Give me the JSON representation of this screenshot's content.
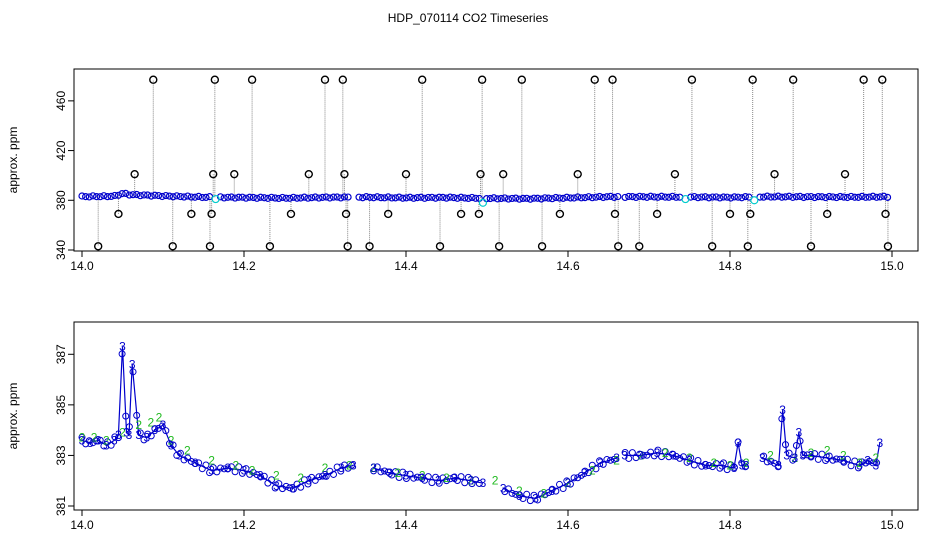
{
  "title": "HDP_070114  CO2 Timeseries",
  "colors": {
    "black": "#000000",
    "blue": "#0000cc",
    "cyan": "#00cccc",
    "green": "#22bb22",
    "gray": "#888888"
  },
  "chart_data": [
    {
      "type": "scatter",
      "ylabel": "approx. ppm",
      "xlim": [
        14.0,
        15.0
      ],
      "ylim": [
        340,
        480
      ],
      "xticks": [
        "14.0",
        "14.2",
        "14.4",
        "14.6",
        "14.8",
        "15.0"
      ],
      "xtick_values": [
        14.0,
        14.2,
        14.4,
        14.6,
        14.8,
        15.0
      ],
      "yticks": [
        "340",
        "380",
        "420",
        "460"
      ],
      "ytick_values": [
        340,
        380,
        420,
        460
      ],
      "baseline": [
        [
          14.0,
          383
        ],
        [
          14.04,
          383.3
        ],
        [
          14.05,
          385.5
        ],
        [
          14.06,
          384.5
        ],
        [
          14.08,
          384
        ],
        [
          14.1,
          383.5
        ],
        [
          14.15,
          382.5
        ],
        [
          14.2,
          382.2
        ],
        [
          14.25,
          381.8
        ],
        [
          14.3,
          382.3
        ],
        [
          14.35,
          382.5
        ],
        [
          14.4,
          382
        ],
        [
          14.45,
          382.2
        ],
        [
          14.5,
          381.6
        ],
        [
          14.55,
          381.3
        ],
        [
          14.6,
          382
        ],
        [
          14.65,
          382.8
        ],
        [
          14.7,
          382.8
        ],
        [
          14.75,
          382.6
        ],
        [
          14.8,
          382.3
        ],
        [
          14.85,
          382.9
        ],
        [
          14.9,
          382.7
        ],
        [
          14.95,
          382.6
        ],
        [
          14.99,
          382.8
        ]
      ],
      "gaps": [
        14.165,
        14.335,
        14.495,
        14.665,
        14.745,
        14.83
      ],
      "cyan_points": [
        [
          14.165,
          381
        ],
        [
          14.495,
          378
        ],
        [
          14.745,
          381
        ],
        [
          14.83,
          380
        ]
      ],
      "spikes": [
        {
          "x": 14.02,
          "y": 343
        },
        {
          "x": 14.045,
          "y": 369
        },
        {
          "x": 14.065,
          "y": 401
        },
        {
          "x": 14.088,
          "y": 477
        },
        {
          "x": 14.112,
          "y": 343
        },
        {
          "x": 14.135,
          "y": 369
        },
        {
          "x": 14.158,
          "y": 343
        },
        {
          "x": 14.16,
          "y": 369
        },
        {
          "x": 14.162,
          "y": 401
        },
        {
          "x": 14.164,
          "y": 477
        },
        {
          "x": 14.188,
          "y": 401
        },
        {
          "x": 14.21,
          "y": 477
        },
        {
          "x": 14.232,
          "y": 343
        },
        {
          "x": 14.258,
          "y": 369
        },
        {
          "x": 14.28,
          "y": 401
        },
        {
          "x": 14.3,
          "y": 477
        },
        {
          "x": 14.322,
          "y": 477
        },
        {
          "x": 14.324,
          "y": 401
        },
        {
          "x": 14.326,
          "y": 369
        },
        {
          "x": 14.328,
          "y": 343
        },
        {
          "x": 14.355,
          "y": 343
        },
        {
          "x": 14.378,
          "y": 369
        },
        {
          "x": 14.4,
          "y": 401
        },
        {
          "x": 14.42,
          "y": 477
        },
        {
          "x": 14.442,
          "y": 343
        },
        {
          "x": 14.468,
          "y": 369
        },
        {
          "x": 14.49,
          "y": 369
        },
        {
          "x": 14.492,
          "y": 401
        },
        {
          "x": 14.494,
          "y": 477
        },
        {
          "x": 14.515,
          "y": 343
        },
        {
          "x": 14.52,
          "y": 401
        },
        {
          "x": 14.543,
          "y": 477
        },
        {
          "x": 14.568,
          "y": 343
        },
        {
          "x": 14.59,
          "y": 369
        },
        {
          "x": 14.612,
          "y": 401
        },
        {
          "x": 14.633,
          "y": 477
        },
        {
          "x": 14.655,
          "y": 477
        },
        {
          "x": 14.658,
          "y": 369
        },
        {
          "x": 14.662,
          "y": 343
        },
        {
          "x": 14.688,
          "y": 343
        },
        {
          "x": 14.71,
          "y": 369
        },
        {
          "x": 14.732,
          "y": 401
        },
        {
          "x": 14.753,
          "y": 477
        },
        {
          "x": 14.778,
          "y": 343
        },
        {
          "x": 14.8,
          "y": 369
        },
        {
          "x": 14.822,
          "y": 343
        },
        {
          "x": 14.825,
          "y": 369
        },
        {
          "x": 14.828,
          "y": 477
        },
        {
          "x": 14.855,
          "y": 401
        },
        {
          "x": 14.878,
          "y": 477
        },
        {
          "x": 14.9,
          "y": 343
        },
        {
          "x": 14.92,
          "y": 369
        },
        {
          "x": 14.942,
          "y": 401
        },
        {
          "x": 14.965,
          "y": 477
        },
        {
          "x": 14.988,
          "y": 477
        },
        {
          "x": 14.992,
          "y": 369
        },
        {
          "x": 14.995,
          "y": 343
        }
      ]
    },
    {
      "type": "line",
      "ylabel": "approx. ppm",
      "xlim": [
        14.0,
        15.0
      ],
      "ylim": [
        381,
        388
      ],
      "xticks": [
        "14.0",
        "14.2",
        "14.4",
        "14.6",
        "14.8",
        "15.0"
      ],
      "xtick_values": [
        14.0,
        14.2,
        14.4,
        14.6,
        14.8,
        15.0
      ],
      "yticks": [
        "381",
        "383",
        "385",
        "387"
      ],
      "ytick_values": [
        381,
        383,
        385,
        387
      ],
      "series": [
        {
          "marker": "3",
          "x": [
            14.0,
            14.01,
            14.02,
            14.03,
            14.04,
            14.045,
            14.05,
            14.055,
            14.058,
            14.062,
            14.07,
            14.08,
            14.09,
            14.1,
            14.11,
            14.12,
            14.14,
            14.16,
            14.18,
            14.2,
            14.22,
            14.24,
            14.26,
            14.28,
            14.3,
            14.32,
            14.335,
            14.34,
            14.36,
            14.38,
            14.4,
            14.42,
            14.44,
            14.46,
            14.48,
            14.495,
            14.5,
            14.52,
            14.54,
            14.56,
            14.58,
            14.6,
            14.62,
            14.64,
            14.66,
            14.665,
            14.67,
            14.69,
            14.71,
            14.73,
            14.75,
            14.77,
            14.79,
            14.805,
            14.81,
            14.815,
            14.82,
            14.83,
            14.84,
            14.86,
            14.865,
            14.87,
            14.88,
            14.885,
            14.89,
            14.9,
            14.92,
            14.94,
            14.96,
            14.97,
            14.98,
            14.985
          ],
          "y": [
            383.6,
            383.5,
            383.6,
            383.4,
            383.6,
            383.8,
            387.3,
            383.9,
            383.8,
            386.6,
            383.8,
            383.7,
            384.0,
            384.2,
            383.4,
            383.0,
            382.7,
            382.4,
            382.5,
            382.4,
            382.2,
            381.8,
            381.7,
            382.0,
            382.2,
            382.5,
            382.6,
            null,
            382.5,
            382.3,
            382.2,
            382.1,
            382.0,
            382.1,
            382.0,
            381.9,
            null,
            381.7,
            381.4,
            381.3,
            381.6,
            381.9,
            382.3,
            382.7,
            382.9,
            null,
            383.0,
            383.0,
            383.1,
            383.0,
            382.8,
            382.6,
            382.6,
            382.5,
            383.5,
            382.6,
            382.6,
            null,
            382.9,
            382.6,
            384.8,
            383.0,
            382.9,
            383.9,
            383.0,
            383.0,
            382.9,
            382.8,
            382.6,
            382.8,
            382.6,
            383.5
          ]
        },
        {
          "marker": "2",
          "x": [
            14.0,
            14.015,
            14.03,
            14.05,
            14.07,
            14.085,
            14.095,
            14.11,
            14.13,
            14.16,
            14.19,
            14.21,
            14.24,
            14.27,
            14.3,
            14.33,
            14.36,
            14.39,
            14.42,
            14.45,
            14.48,
            14.51,
            14.54,
            14.57,
            14.6,
            14.63,
            14.66,
            14.69,
            14.72,
            14.75,
            14.78,
            14.8,
            14.82,
            14.85,
            14.88,
            14.9,
            14.92,
            14.94,
            14.96,
            14.98
          ],
          "y": [
            383.7,
            383.7,
            383.6,
            383.9,
            384.2,
            384.3,
            384.5,
            383.6,
            383.2,
            382.8,
            382.6,
            382.4,
            382.2,
            382.1,
            382.5,
            382.6,
            382.5,
            382.3,
            382.2,
            382.1,
            382.0,
            382.0,
            381.6,
            381.5,
            381.9,
            382.4,
            382.8,
            383.0,
            383.1,
            382.9,
            382.7,
            382.6,
            382.7,
            383.0,
            382.9,
            383.1,
            383.2,
            383.0,
            382.7,
            382.9
          ]
        }
      ]
    }
  ]
}
